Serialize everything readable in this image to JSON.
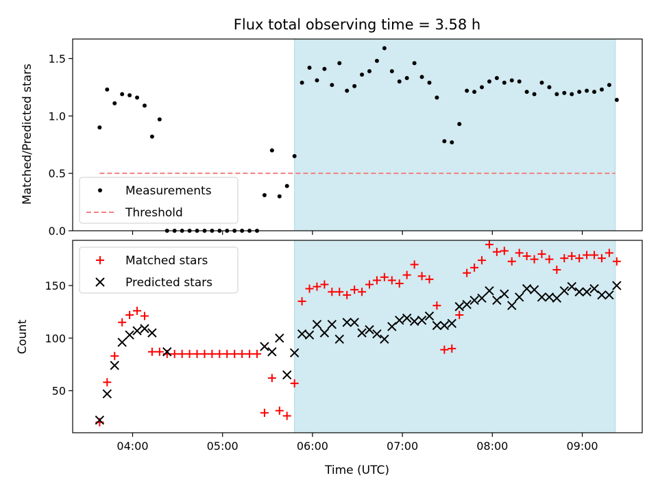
{
  "title": "Flux total observing time = 3.58 h",
  "colors": {
    "measurement": "#000000",
    "threshold": "#f08080",
    "matched": "#ff0000",
    "predicted": "#000000",
    "shade": "#add8e6"
  },
  "chart_data": [
    {
      "type": "scatter",
      "ylabel": "Matched/Predicted stars",
      "ylim": [
        0,
        1.67
      ],
      "yticks": [
        0.0,
        0.5,
        1.0,
        1.5
      ],
      "ytick_labels": [
        "0.0",
        "0.5",
        "1.0",
        "1.5"
      ],
      "shaded_region": {
        "x": [
          "05:48",
          "09:22"
        ]
      },
      "legend": {
        "placement": "lower-left",
        "entries": [
          "Measurements",
          "Threshold"
        ]
      },
      "threshold": {
        "name": "Threshold",
        "value": 0.5,
        "x": [
          "03:38",
          "09:22"
        ]
      },
      "series": [
        {
          "name": "Measurements",
          "x": [
            "03:38",
            "03:43",
            "03:48",
            "03:53",
            "03:58",
            "04:03",
            "04:08",
            "04:13",
            "04:18",
            "04:23",
            "04:28",
            "04:33",
            "04:38",
            "04:43",
            "04:48",
            "04:53",
            "04:58",
            "05:03",
            "05:08",
            "05:13",
            "05:18",
            "05:23",
            "05:28",
            "05:33",
            "05:38",
            "05:43",
            "05:48",
            "05:53",
            "05:58",
            "06:03",
            "06:08",
            "06:13",
            "06:18",
            "06:23",
            "06:28",
            "06:33",
            "06:38",
            "06:43",
            "06:48",
            "06:53",
            "06:58",
            "07:03",
            "07:08",
            "07:13",
            "07:18",
            "07:23",
            "07:28",
            "07:33",
            "07:38",
            "07:43",
            "07:48",
            "07:53",
            "07:58",
            "08:03",
            "08:08",
            "08:13",
            "08:18",
            "08:23",
            "08:28",
            "08:33",
            "08:38",
            "08:43",
            "08:48",
            "08:53",
            "08:58",
            "09:03",
            "09:08",
            "09:13",
            "09:18",
            "09:23"
          ],
          "y": [
            0.9,
            1.23,
            1.11,
            1.19,
            1.18,
            1.16,
            1.09,
            0.82,
            0.97,
            0.0,
            0.0,
            0.0,
            0.0,
            0.0,
            0.0,
            0.0,
            0.0,
            0.0,
            0.0,
            0.0,
            0.0,
            0.0,
            0.31,
            0.7,
            0.3,
            0.39,
            0.65,
            1.29,
            1.42,
            1.31,
            1.41,
            1.27,
            1.46,
            1.22,
            1.26,
            1.36,
            1.39,
            1.48,
            1.59,
            1.39,
            1.3,
            1.33,
            1.46,
            1.34,
            1.29,
            1.16,
            0.78,
            0.77,
            0.93,
            1.22,
            1.21,
            1.25,
            1.3,
            1.33,
            1.29,
            1.31,
            1.3,
            1.21,
            1.19,
            1.29,
            1.25,
            1.19,
            1.2,
            1.19,
            1.21,
            1.22,
            1.21,
            1.23,
            1.27,
            1.14
          ]
        }
      ]
    },
    {
      "type": "scatter",
      "xlabel": "Time (UTC)",
      "ylabel": "Count",
      "ylim": [
        10,
        193
      ],
      "xlim": [
        "03:20",
        "09:40"
      ],
      "xticks": [
        "04:00",
        "05:00",
        "06:00",
        "07:00",
        "08:00",
        "09:00"
      ],
      "yticks": [
        50,
        100,
        150
      ],
      "ytick_labels": [
        "50",
        "100",
        "150"
      ],
      "shaded_region": {
        "x": [
          "05:48",
          "09:22"
        ]
      },
      "legend": {
        "placement": "upper-left",
        "entries": [
          "Matched stars",
          "Predicted stars"
        ]
      },
      "series": [
        {
          "name": "Matched stars",
          "x": [
            "03:38",
            "03:43",
            "03:48",
            "03:53",
            "03:58",
            "04:03",
            "04:08",
            "04:13",
            "04:18",
            "04:23",
            "04:28",
            "04:33",
            "04:38",
            "04:43",
            "04:48",
            "04:53",
            "04:58",
            "05:03",
            "05:08",
            "05:13",
            "05:18",
            "05:23",
            "05:28",
            "05:33",
            "05:38",
            "05:43",
            "05:48",
            "05:53",
            "05:58",
            "06:03",
            "06:08",
            "06:13",
            "06:18",
            "06:23",
            "06:28",
            "06:33",
            "06:38",
            "06:43",
            "06:48",
            "06:53",
            "06:58",
            "07:03",
            "07:08",
            "07:13",
            "07:18",
            "07:23",
            "07:28",
            "07:33",
            "07:38",
            "07:43",
            "07:48",
            "07:53",
            "07:58",
            "08:03",
            "08:08",
            "08:13",
            "08:18",
            "08:23",
            "08:28",
            "08:33",
            "08:38",
            "08:43",
            "08:48",
            "08:53",
            "08:58",
            "09:03",
            "09:08",
            "09:13",
            "09:18",
            "09:23"
          ],
          "y": [
            20,
            58,
            83,
            115,
            122,
            126,
            121,
            87,
            87,
            85,
            85,
            85,
            85,
            85,
            85,
            85,
            85,
            85,
            85,
            85,
            85,
            85,
            29,
            62,
            31,
            26,
            57,
            135,
            147,
            149,
            151,
            144,
            144,
            141,
            146,
            144,
            151,
            155,
            158,
            155,
            152,
            160,
            170,
            159,
            156,
            131,
            89,
            90,
            122,
            162,
            167,
            174,
            189,
            182,
            183,
            173,
            181,
            178,
            175,
            180,
            175,
            165,
            176,
            178,
            176,
            179,
            179,
            176,
            181,
            173
          ]
        },
        {
          "name": "Predicted stars",
          "x": [
            "03:38",
            "03:43",
            "03:48",
            "03:53",
            "03:58",
            "04:03",
            "04:08",
            "04:13",
            "04:23",
            "05:28",
            "05:33",
            "05:38",
            "05:43",
            "05:48",
            "05:53",
            "05:58",
            "06:03",
            "06:08",
            "06:13",
            "06:18",
            "06:23",
            "06:28",
            "06:33",
            "06:38",
            "06:43",
            "06:48",
            "06:53",
            "06:58",
            "07:03",
            "07:08",
            "07:13",
            "07:18",
            "07:23",
            "07:28",
            "07:33",
            "07:38",
            "07:43",
            "07:48",
            "07:53",
            "07:58",
            "08:03",
            "08:08",
            "08:13",
            "08:18",
            "08:23",
            "08:28",
            "08:33",
            "08:38",
            "08:43",
            "08:48",
            "08:53",
            "08:58",
            "09:03",
            "09:08",
            "09:13",
            "09:18",
            "09:23"
          ],
          "y": [
            22,
            47,
            74,
            96,
            103,
            107,
            109,
            105,
            87,
            92,
            87,
            100,
            65,
            86,
            104,
            103,
            113,
            105,
            113,
            99,
            115,
            115,
            105,
            108,
            104,
            99,
            111,
            117,
            119,
            116,
            117,
            121,
            112,
            112,
            114,
            130,
            132,
            136,
            138,
            145,
            136,
            142,
            131,
            139,
            147,
            146,
            139,
            139,
            138,
            145,
            149,
            144,
            144,
            147,
            141,
            141,
            150
          ]
        }
      ]
    }
  ]
}
